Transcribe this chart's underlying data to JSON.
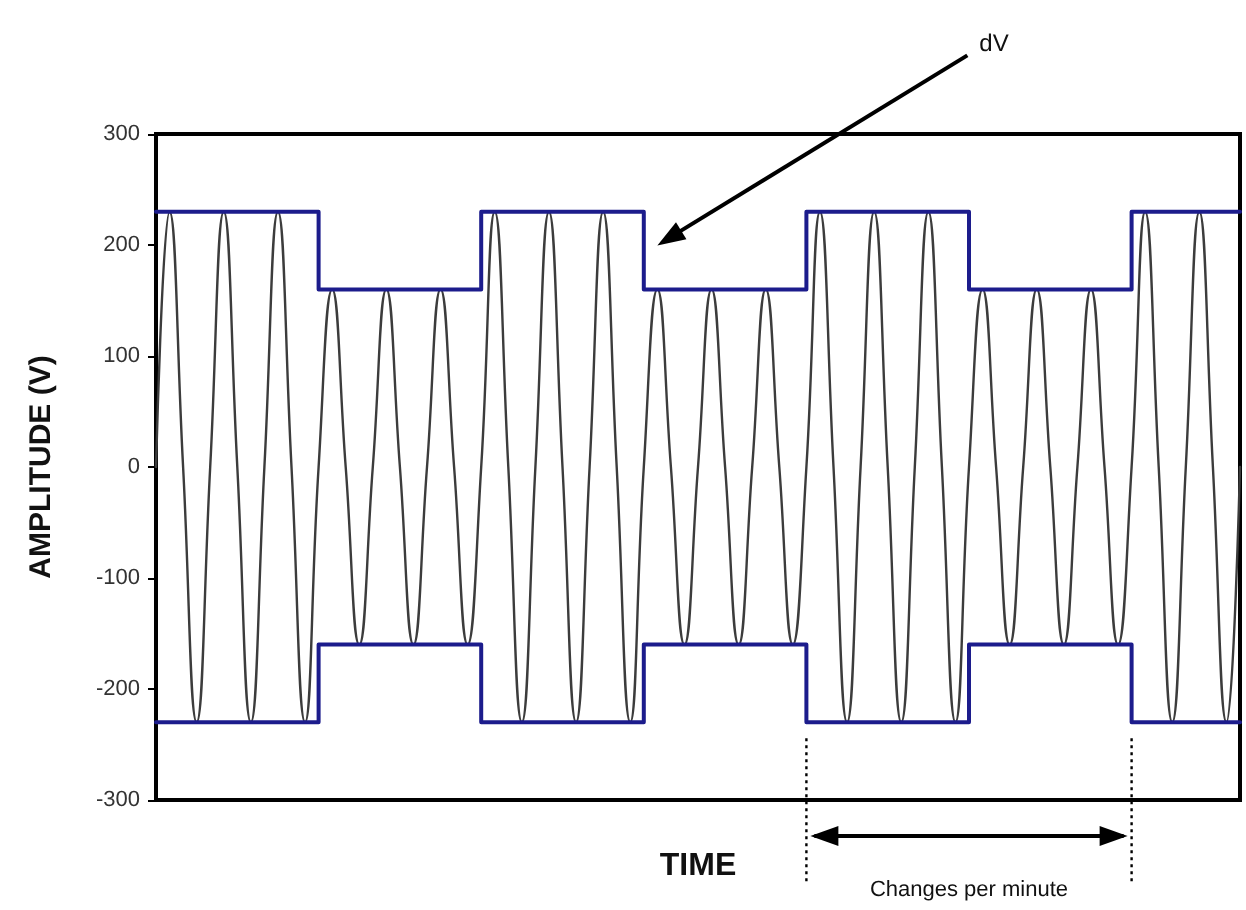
{
  "chart_data": {
    "type": "line",
    "xlabel": "TIME",
    "ylabel": "AMPLITUDE (V)",
    "annotations": [
      "dV",
      "Changes per minute"
    ],
    "categories": [
      null,
      null,
      null,
      null,
      null,
      null,
      null,
      null,
      null,
      null,
      null,
      null,
      null,
      null,
      null,
      null,
      null,
      null,
      null,
      null,
      null,
      null,
      null,
      null,
      null,
      null,
      null,
      null,
      null,
      null,
      null,
      null,
      null,
      null,
      null,
      null,
      null,
      null,
      null,
      null,
      null,
      null,
      null,
      null,
      null,
      null,
      null,
      null,
      null,
      null,
      null,
      null,
      null,
      null,
      null,
      null,
      null,
      null,
      null,
      null,
      null,
      null,
      null,
      null,
      null,
      null,
      null,
      null,
      null,
      null,
      null,
      null,
      null,
      null,
      null,
      null,
      null,
      null,
      null,
      null,
      null
    ],
    "series": [
      {
        "color": "#3c3c3c",
        "values": [
          0,
          230,
          0,
          -230,
          0,
          230,
          0,
          -230,
          0,
          230,
          0,
          -230,
          0,
          160,
          0,
          -160,
          0,
          160,
          0,
          -160,
          0,
          160,
          0,
          -160,
          0,
          230,
          0,
          -230,
          0,
          230,
          0,
          -230,
          0,
          230,
          0,
          -230,
          0,
          160,
          0,
          -160,
          0,
          160,
          0,
          -160,
          0,
          160,
          0,
          -160,
          0,
          230,
          0,
          -230,
          0,
          230,
          0,
          -230,
          0,
          230,
          0,
          -230,
          0,
          160,
          0,
          -160,
          0,
          160,
          0,
          -160,
          0,
          160,
          0,
          -160,
          0,
          230,
          0,
          -230,
          0,
          230,
          0,
          -230,
          0
        ]
      },
      {
        "type": "step",
        "color": "#1c1c8c",
        "values": [
          230,
          230,
          230,
          230,
          230,
          230,
          230,
          230,
          230,
          230,
          230,
          230,
          160,
          160,
          160,
          160,
          160,
          160,
          160,
          160,
          160,
          160,
          160,
          160,
          230,
          230,
          230,
          230,
          230,
          230,
          230,
          230,
          230,
          230,
          230,
          230,
          160,
          160,
          160,
          160,
          160,
          160,
          160,
          160,
          160,
          160,
          160,
          160,
          230,
          230,
          230,
          230,
          230,
          230,
          230,
          230,
          230,
          230,
          230,
          230,
          160,
          160,
          160,
          160,
          160,
          160,
          160,
          160,
          160,
          160,
          160,
          160,
          230,
          230,
          230,
          230,
          230,
          230,
          230,
          230,
          230
        ]
      },
      {
        "type": "step",
        "color": "#1c1c8c",
        "values": [
          -230,
          -230,
          -230,
          -230,
          -230,
          -230,
          -230,
          -230,
          -230,
          -230,
          -230,
          -230,
          -160,
          -160,
          -160,
          -160,
          -160,
          -160,
          -160,
          -160,
          -160,
          -160,
          -160,
          -160,
          -230,
          -230,
          -230,
          -230,
          -230,
          -230,
          -230,
          -230,
          -230,
          -230,
          -230,
          -230,
          -160,
          -160,
          -160,
          -160,
          -160,
          -160,
          -160,
          -160,
          -160,
          -160,
          -160,
          -160,
          -230,
          -230,
          -230,
          -230,
          -230,
          -230,
          -230,
          -230,
          -230,
          -230,
          -230,
          -230,
          -160,
          -160,
          -160,
          -160,
          -160,
          -160,
          -160,
          -160,
          -160,
          -160,
          -160,
          -160,
          -230,
          -230,
          -230,
          -230,
          -230,
          -230,
          -230,
          -230,
          -230
        ]
      }
    ],
    "ylim": [
      -300,
      300
    ],
    "yticks": [
      -300,
      -200,
      -100,
      0,
      100,
      200,
      300
    ],
    "grid": false,
    "marker": "none",
    "line_style": "solid"
  }
}
